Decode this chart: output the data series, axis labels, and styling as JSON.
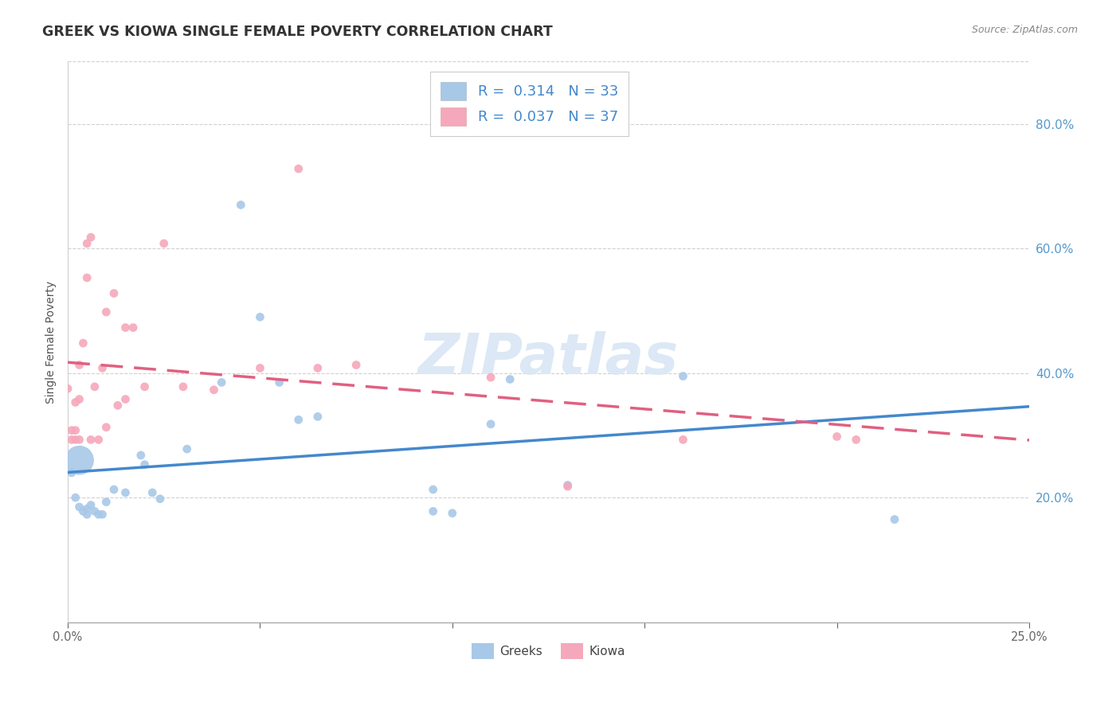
{
  "title": "GREEK VS KIOWA SINGLE FEMALE POVERTY CORRELATION CHART",
  "source": "Source: ZipAtlas.com",
  "ylabel": "Single Female Poverty",
  "xlim": [
    0.0,
    0.25
  ],
  "ylim": [
    0.0,
    0.9
  ],
  "xticks": [
    0.0,
    0.05,
    0.1,
    0.15,
    0.2,
    0.25
  ],
  "yticks_right": [
    0.2,
    0.4,
    0.6,
    0.8
  ],
  "background_color": "#ffffff",
  "greek_color": "#a8c8e8",
  "kiowa_color": "#f5a8bb",
  "greek_line_color": "#4488cc",
  "kiowa_line_color": "#e06080",
  "greek_R": 0.314,
  "greek_N": 33,
  "kiowa_R": 0.037,
  "kiowa_N": 37,
  "greek_points": [
    [
      0.001,
      0.24
    ],
    [
      0.002,
      0.2
    ],
    [
      0.003,
      0.185
    ],
    [
      0.004,
      0.178
    ],
    [
      0.005,
      0.173
    ],
    [
      0.005,
      0.182
    ],
    [
      0.006,
      0.188
    ],
    [
      0.007,
      0.178
    ],
    [
      0.008,
      0.173
    ],
    [
      0.009,
      0.173
    ],
    [
      0.01,
      0.193
    ],
    [
      0.012,
      0.213
    ],
    [
      0.015,
      0.208
    ],
    [
      0.019,
      0.268
    ],
    [
      0.02,
      0.253
    ],
    [
      0.022,
      0.208
    ],
    [
      0.024,
      0.198
    ],
    [
      0.003,
      0.26
    ],
    [
      0.031,
      0.278
    ],
    [
      0.04,
      0.385
    ],
    [
      0.045,
      0.67
    ],
    [
      0.05,
      0.49
    ],
    [
      0.055,
      0.385
    ],
    [
      0.06,
      0.325
    ],
    [
      0.065,
      0.33
    ],
    [
      0.095,
      0.178
    ],
    [
      0.095,
      0.213
    ],
    [
      0.1,
      0.175
    ],
    [
      0.11,
      0.318
    ],
    [
      0.115,
      0.39
    ],
    [
      0.13,
      0.22
    ],
    [
      0.16,
      0.395
    ],
    [
      0.215,
      0.165
    ]
  ],
  "greek_sizes": [
    60,
    60,
    60,
    60,
    60,
    60,
    60,
    60,
    60,
    60,
    60,
    60,
    60,
    60,
    60,
    60,
    60,
    700,
    60,
    60,
    60,
    60,
    60,
    60,
    60,
    60,
    60,
    60,
    60,
    60,
    60,
    60,
    60
  ],
  "kiowa_points": [
    [
      0.0,
      0.375
    ],
    [
      0.001,
      0.308
    ],
    [
      0.001,
      0.293
    ],
    [
      0.002,
      0.308
    ],
    [
      0.002,
      0.293
    ],
    [
      0.002,
      0.353
    ],
    [
      0.003,
      0.293
    ],
    [
      0.003,
      0.358
    ],
    [
      0.003,
      0.413
    ],
    [
      0.004,
      0.448
    ],
    [
      0.005,
      0.553
    ],
    [
      0.005,
      0.608
    ],
    [
      0.006,
      0.618
    ],
    [
      0.006,
      0.293
    ],
    [
      0.007,
      0.378
    ],
    [
      0.008,
      0.293
    ],
    [
      0.009,
      0.408
    ],
    [
      0.01,
      0.313
    ],
    [
      0.01,
      0.498
    ],
    [
      0.012,
      0.528
    ],
    [
      0.013,
      0.348
    ],
    [
      0.015,
      0.358
    ],
    [
      0.015,
      0.473
    ],
    [
      0.017,
      0.473
    ],
    [
      0.02,
      0.378
    ],
    [
      0.025,
      0.608
    ],
    [
      0.03,
      0.378
    ],
    [
      0.038,
      0.373
    ],
    [
      0.05,
      0.408
    ],
    [
      0.06,
      0.728
    ],
    [
      0.065,
      0.408
    ],
    [
      0.075,
      0.413
    ],
    [
      0.11,
      0.393
    ],
    [
      0.13,
      0.218
    ],
    [
      0.16,
      0.293
    ],
    [
      0.2,
      0.298
    ],
    [
      0.205,
      0.293
    ]
  ],
  "kiowa_sizes": [
    60,
    60,
    60,
    60,
    60,
    60,
    60,
    60,
    60,
    60,
    60,
    60,
    60,
    60,
    60,
    60,
    60,
    60,
    60,
    60,
    60,
    60,
    60,
    60,
    60,
    60,
    60,
    60,
    60,
    60,
    60,
    60,
    60,
    60,
    60,
    60,
    60
  ]
}
